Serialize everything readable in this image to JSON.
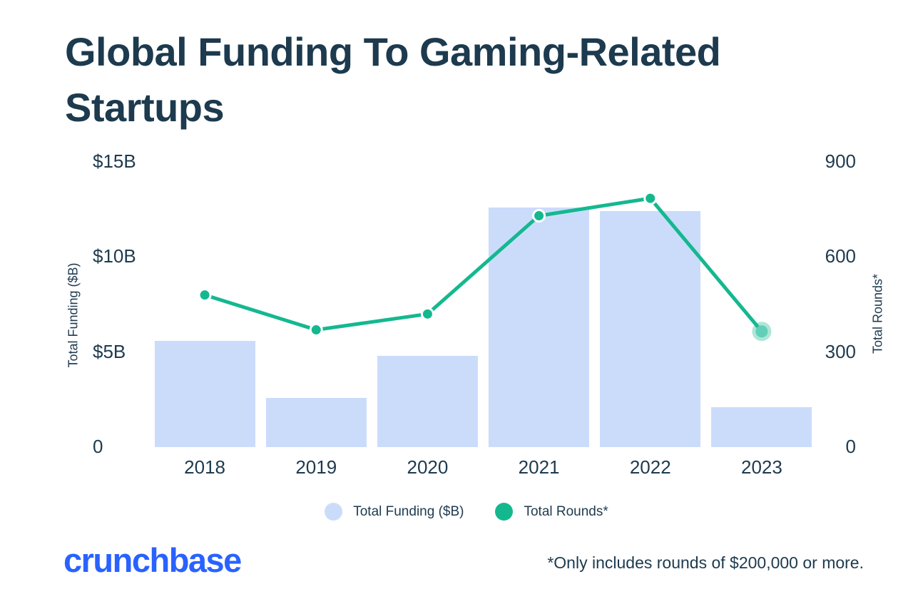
{
  "title": "Global Funding To Gaming-Related Startups",
  "title_lines": [
    "Global Funding To Gaming-Related",
    "Startups"
  ],
  "footnote": "*Only includes rounds of $200,000 or more.",
  "brand": {
    "logo_text": "crunchbase"
  },
  "colors": {
    "text": "#1d3a4e",
    "bar": "#cbdcfb",
    "line": "#14b88f",
    "dot_ring": "#ffffff",
    "last_point_fill": "#62cfb7",
    "last_point_halo": "rgba(20,184,143,0.35)",
    "logo_blue": "#2962ff"
  },
  "chart_data": {
    "type": "bar+line (dual axis)",
    "title": "Global Funding To Gaming-Related Startups",
    "categories": [
      "2018",
      "2019",
      "2020",
      "2021",
      "2022",
      "2023"
    ],
    "series": [
      {
        "name": "Total Funding ($B)",
        "type": "bar",
        "axis": "left",
        "values": [
          5.6,
          2.6,
          4.8,
          12.6,
          12.4,
          2.1
        ]
      },
      {
        "name": "Total Rounds*",
        "type": "line",
        "axis": "right",
        "values": [
          480,
          370,
          420,
          730,
          785,
          365
        ]
      }
    ],
    "left_axis": {
      "label": "Total Funding ($B)",
      "ticks": [
        "$15B",
        "$10B",
        "$5B",
        "0"
      ],
      "tick_values": [
        15,
        10,
        5,
        0
      ],
      "min": 0,
      "max": 15
    },
    "right_axis": {
      "label": "Total Rounds*",
      "ticks": [
        "900",
        "600",
        "300",
        "0"
      ],
      "tick_values": [
        900,
        600,
        300,
        0
      ],
      "min": 0,
      "max": 900
    },
    "legend": [
      {
        "label": "Total Funding ($B)",
        "color": "#cbdcfb"
      },
      {
        "label": "Total Rounds*",
        "color": "#14b88f"
      }
    ],
    "grid": false,
    "legend_position": "bottom-center",
    "last_point_highlighted": true
  }
}
